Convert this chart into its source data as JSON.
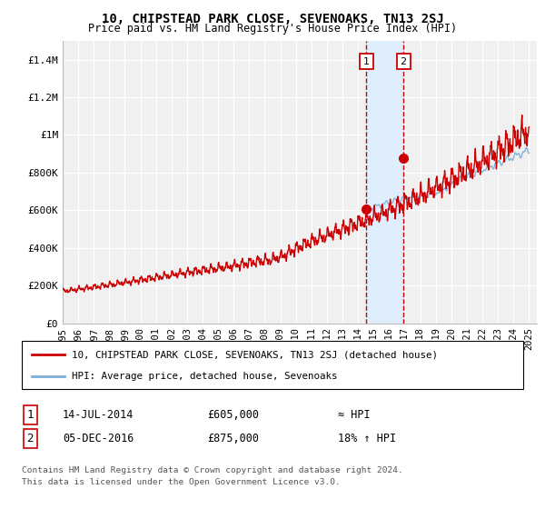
{
  "title": "10, CHIPSTEAD PARK CLOSE, SEVENOAKS, TN13 2SJ",
  "subtitle": "Price paid vs. HM Land Registry's House Price Index (HPI)",
  "legend_label_red": "10, CHIPSTEAD PARK CLOSE, SEVENOAKS, TN13 2SJ (detached house)",
  "legend_label_blue": "HPI: Average price, detached house, Sevenoaks",
  "annotation1_label": "1",
  "annotation1_date": "14-JUL-2014",
  "annotation1_price": "£605,000",
  "annotation1_hpi": "≈ HPI",
  "annotation2_label": "2",
  "annotation2_date": "05-DEC-2016",
  "annotation2_price": "£875,000",
  "annotation2_hpi": "18% ↑ HPI",
  "footer1": "Contains HM Land Registry data © Crown copyright and database right 2024.",
  "footer2": "This data is licensed under the Open Government Licence v3.0.",
  "marker1_year": 2014.54,
  "marker2_year": 2016.92,
  "marker1_price": 605000,
  "marker2_price": 875000,
  "red_color": "#cc0000",
  "blue_color": "#7aaed6",
  "shade_color": "#ddeeff",
  "vline_color": "#cc0000",
  "plot_bg_color": "#f0f0f0",
  "grid_color": "#ffffff",
  "ylim": [
    0,
    1500000
  ],
  "yticks": [
    0,
    200000,
    400000,
    600000,
    800000,
    1000000,
    1200000,
    1400000
  ],
  "ytick_labels": [
    "£0",
    "£200K",
    "£400K",
    "£600K",
    "£800K",
    "£1M",
    "£1.2M",
    "£1.4M"
  ],
  "xtick_years": [
    1995,
    1996,
    1997,
    1998,
    1999,
    2000,
    2001,
    2002,
    2003,
    2004,
    2005,
    2006,
    2007,
    2008,
    2009,
    2010,
    2011,
    2012,
    2013,
    2014,
    2015,
    2016,
    2017,
    2018,
    2019,
    2020,
    2021,
    2022,
    2023,
    2024,
    2025
  ],
  "blue_start_year": 2014.5
}
